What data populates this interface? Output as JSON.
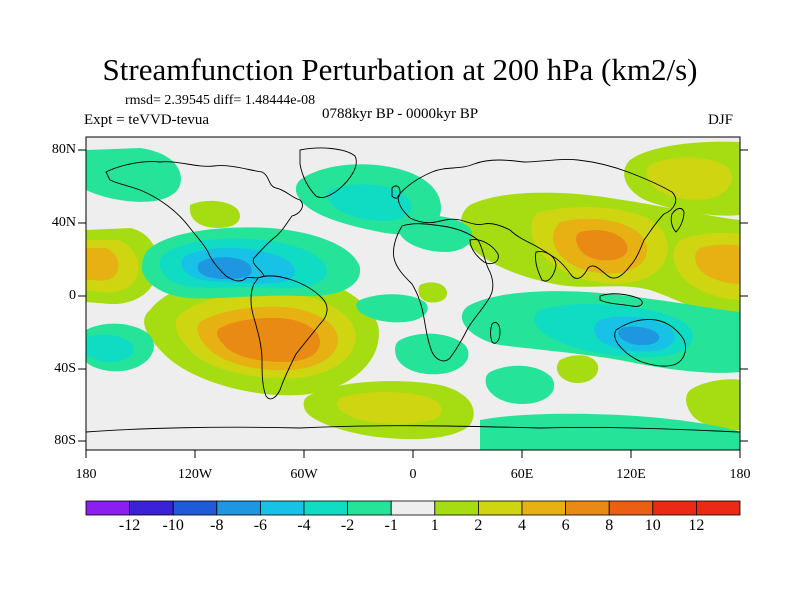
{
  "figure": {
    "title": "Streamfunction Perturbation at 200 hPa (km2/s)",
    "stats": "rmsd= 2.39545 diff= 1.48444e-08",
    "experiment": "Expt = teVVD-tevua",
    "period": "0788kyr BP - 0000kyr BP",
    "season": "DJF"
  },
  "axes": {
    "lat_labels": [
      "80N",
      "40N",
      "0",
      "40S",
      "80S"
    ],
    "lon_labels": [
      "180",
      "120W",
      "60W",
      "0",
      "60E",
      "120E",
      "180"
    ]
  },
  "colorbar": {
    "labels": [
      "-12",
      "-10",
      "-8",
      "-6",
      "-4",
      "-2",
      "-1",
      "1",
      "2",
      "4",
      "6",
      "8",
      "10",
      "12"
    ],
    "colors": [
      "#8a1ff0",
      "#3b22d6",
      "#1f5bd8",
      "#1f96e0",
      "#18c1e6",
      "#10dcc4",
      "#26e39a",
      "#eeeeee",
      "#a6dd12",
      "#cfd611",
      "#e7b113",
      "#e98a14",
      "#ea5f14",
      "#ea2a15"
    ]
  },
  "chart_data": {
    "type": "heatmap",
    "title": "Streamfunction Perturbation at 200 hPa (km2/s)",
    "variable": "streamfunction perturbation",
    "units": "km2/s",
    "level": "200 hPa",
    "season": "DJF",
    "x_range": [
      -180,
      180
    ],
    "y_range": [
      -90,
      90
    ],
    "levels": [
      -12,
      -10,
      -8,
      -6,
      -4,
      -2,
      -1,
      1,
      2,
      4,
      6,
      8,
      10,
      12
    ],
    "features": [
      {
        "name": "south-america-high",
        "lon": -82,
        "lat": -23,
        "value": 9
      },
      {
        "name": "north-pacific-low",
        "lon": -122,
        "lat": 14,
        "value": -6
      },
      {
        "name": "asia-high",
        "lon": 103,
        "lat": 25,
        "value": 7
      },
      {
        "name": "dateline-high",
        "lon": 170,
        "lat": 20,
        "value": 6
      },
      {
        "name": "arctic-high",
        "lon": 148,
        "lat": 62,
        "value": 4
      },
      {
        "name": "australia-low",
        "lon": 112,
        "lat": -28,
        "value": -5
      },
      {
        "name": "southern-ocean-high",
        "lon": 0,
        "lat": -55,
        "value": 3
      },
      {
        "name": "atlantic-low",
        "lon": -40,
        "lat": 45,
        "value": -3
      }
    ]
  }
}
